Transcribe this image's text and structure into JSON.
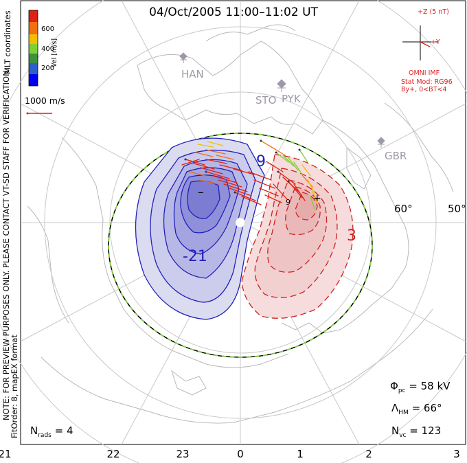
{
  "title": "04/Oct/2005 11:00–11:02 UT",
  "colorbar": {
    "ticks": [
      "600",
      "400",
      "200"
    ],
    "label": "Vel [m/s]",
    "colors": [
      "#0000ee",
      "#2e5fc8",
      "#3c9040",
      "#7fd030",
      "#f0c000",
      "#f07010",
      "#e02010"
    ]
  },
  "coordinates_label": "MLT coordinates",
  "velocity_scale_label": "1000 m/s",
  "imf": {
    "axis_z": "+Z (5 nT)",
    "axis_y": "+Y",
    "source": "OMNI IMF",
    "model_line1": "Stat Mod: RG96",
    "model_line2": "By+, 0<BT<4"
  },
  "notes": {
    "preview": "NOTE: FOR PREVIEW PURPOSES ONLY. PLEASE CONTACT VT-SD STAFF FOR VERIFICATION.",
    "fit": "FitOrder: 8, mapEX format"
  },
  "sites": [
    "HAN",
    "STO",
    "PYK",
    "GBR"
  ],
  "latitude_labels": [
    "60°",
    "50°"
  ],
  "contour_labels": [
    "9",
    "-21",
    "–",
    "9",
    "+",
    "3"
  ],
  "stats": {
    "phi_symbol": "Φ",
    "phi_sub": "pc",
    "phi_value": "= 58 kV",
    "lambda_symbol": "Λ",
    "lambda_sub": "HM",
    "lambda_value": "= 66°",
    "nvc_symbol": "N",
    "nvc_sub": "vc",
    "nvc_value": "= 123",
    "nrads_symbol": "N",
    "nrads_sub": "rads",
    "nrads_value": "= 4"
  },
  "mlt_labels": [
    "21",
    "22",
    "23",
    "0",
    "1",
    "2",
    "3"
  ],
  "colors": {
    "dusk_cell": "#3333cc",
    "dawn_cell": "#cc2222",
    "hm_boundary_green": "#80d040",
    "grid": "#c8c8c8",
    "coast": "#b8b8b8",
    "imf_red": "#e02020"
  }
}
